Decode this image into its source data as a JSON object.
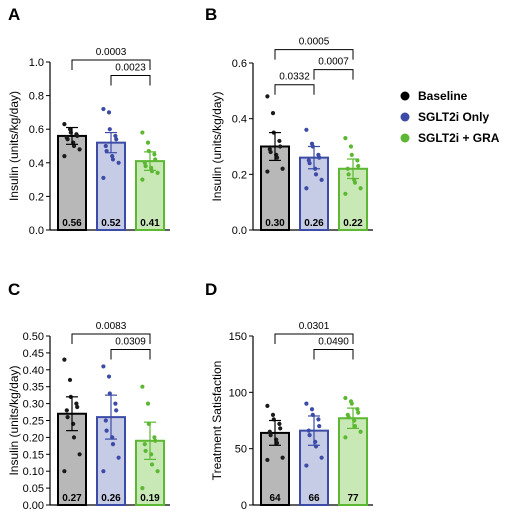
{
  "legend": {
    "position": "right",
    "items": [
      {
        "label": "Baseline",
        "color": "#000000"
      },
      {
        "label": "SGLT2i Only",
        "color": "#3b4ba6"
      },
      {
        "label": "SGLT2i + GRA",
        "color": "#5cb832"
      }
    ]
  },
  "colors": {
    "fills": [
      "#b8b8b8",
      "#c6cbe6",
      "#c8e9b6"
    ],
    "edges": [
      "#000000",
      "#3b4ba6",
      "#5cb832"
    ],
    "points": [
      "#1a1a1a",
      "#3b4ba6",
      "#5cb832"
    ]
  },
  "chart_data": [
    {
      "panel": "A",
      "type": "bar",
      "ylabel": "Insulin (units/kg/day)",
      "ylim": [
        0,
        1.0
      ],
      "yticks": [
        "0.0",
        "0.2",
        "0.4",
        "0.6",
        "0.8",
        "1.0"
      ],
      "values": [
        0.56,
        0.52,
        0.41
      ],
      "value_labels": [
        "0.56",
        "0.52",
        "0.41"
      ],
      "errors": [
        0.05,
        0.06,
        0.055
      ],
      "points": [
        [
          0.63,
          0.6,
          0.58,
          0.57,
          0.56,
          0.55,
          0.54,
          0.52,
          0.5,
          0.48,
          0.44
        ],
        [
          0.72,
          0.7,
          0.6,
          0.56,
          0.54,
          0.5,
          0.47,
          0.44,
          0.42,
          0.4,
          0.31
        ],
        [
          0.58,
          0.52,
          0.47,
          0.45,
          0.42,
          0.4,
          0.38,
          0.37,
          0.35,
          0.34,
          0.3
        ]
      ],
      "comparisons": [
        {
          "from": 0,
          "to": 2,
          "label": "0.0003"
        },
        {
          "from": 1,
          "to": 2,
          "label": "0.0023"
        }
      ]
    },
    {
      "panel": "B",
      "type": "bar",
      "ylabel": "Insulin (units/kg/day)",
      "ylim": [
        0,
        0.6
      ],
      "yticks": [
        "0.0",
        "0.2",
        "0.4",
        "0.6"
      ],
      "values": [
        0.3,
        0.26,
        0.22
      ],
      "value_labels": [
        "0.30",
        "0.26",
        "0.22"
      ],
      "errors": [
        0.05,
        0.04,
        0.035
      ],
      "points": [
        [
          0.48,
          0.42,
          0.35,
          0.32,
          0.3,
          0.29,
          0.28,
          0.27,
          0.26,
          0.22,
          0.21
        ],
        [
          0.36,
          0.31,
          0.3,
          0.27,
          0.26,
          0.25,
          0.24,
          0.22,
          0.2,
          0.18,
          0.15
        ],
        [
          0.33,
          0.3,
          0.27,
          0.25,
          0.23,
          0.22,
          0.2,
          0.18,
          0.17,
          0.15,
          0.13
        ]
      ],
      "comparisons": [
        {
          "from": 0,
          "to": 1,
          "label": "0.0332"
        },
        {
          "from": 1,
          "to": 2,
          "label": "0.0007"
        },
        {
          "from": 0,
          "to": 2,
          "label": "0.0005"
        }
      ]
    },
    {
      "panel": "C",
      "type": "bar",
      "ylabel": "Insulin (units/kg/day)",
      "ylim": [
        0,
        0.5
      ],
      "yticks": [
        "0.00",
        "0.05",
        "0.10",
        "0.15",
        "0.20",
        "0.25",
        "0.30",
        "0.35",
        "0.40",
        "0.45",
        "0.50"
      ],
      "values": [
        0.27,
        0.26,
        0.19
      ],
      "value_labels": [
        "0.27",
        "0.26",
        "0.19"
      ],
      "errors": [
        0.05,
        0.065,
        0.055
      ],
      "points": [
        [
          0.43,
          0.37,
          0.32,
          0.3,
          0.29,
          0.28,
          0.26,
          0.24,
          0.2,
          0.15,
          0.1
        ],
        [
          0.41,
          0.38,
          0.33,
          0.3,
          0.28,
          0.25,
          0.22,
          0.2,
          0.18,
          0.14,
          0.1
        ],
        [
          0.35,
          0.3,
          0.24,
          0.2,
          0.19,
          0.18,
          0.16,
          0.15,
          0.12,
          0.1,
          0.05
        ]
      ],
      "comparisons": [
        {
          "from": 0,
          "to": 2,
          "label": "0.0083"
        },
        {
          "from": 1,
          "to": 2,
          "label": "0.0309"
        }
      ]
    },
    {
      "panel": "D",
      "type": "bar",
      "ylabel": "Treatment Satisfaction",
      "ylim": [
        0,
        150
      ],
      "yticks": [
        "0",
        "50",
        "100",
        "150"
      ],
      "values": [
        64,
        66,
        77
      ],
      "value_labels": [
        "64",
        "66",
        "77"
      ],
      "errors": [
        11,
        13,
        9
      ],
      "points": [
        [
          88,
          80,
          76,
          72,
          68,
          65,
          62,
          58,
          55,
          42,
          40
        ],
        [
          90,
          85,
          80,
          76,
          70,
          66,
          62,
          56,
          52,
          42,
          35
        ],
        [
          95,
          92,
          90,
          85,
          82,
          80,
          78,
          75,
          70,
          65,
          60
        ]
      ],
      "comparisons": [
        {
          "from": 0,
          "to": 2,
          "label": "0.0301"
        },
        {
          "from": 1,
          "to": 2,
          "label": "0.0490"
        }
      ]
    }
  ]
}
